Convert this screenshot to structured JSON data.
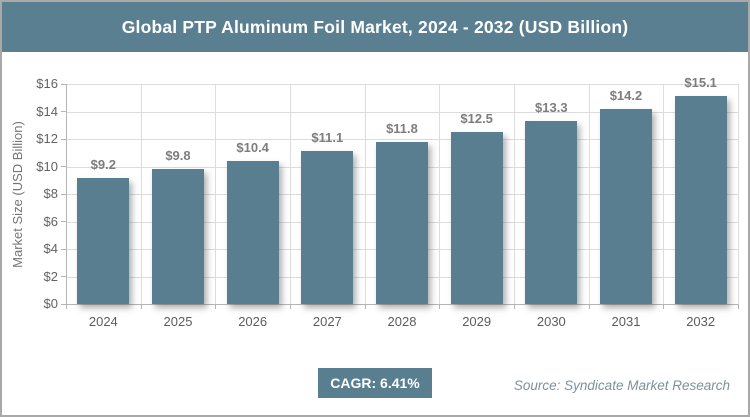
{
  "header": {
    "title": "Global PTP Aluminum Foil Market, 2024 - 2032 (USD Billion)"
  },
  "chart_data": {
    "type": "bar",
    "title": "Global PTP Aluminum Foil Market, 2024 - 2032 (USD Billion)",
    "categories": [
      "2024",
      "2025",
      "2026",
      "2027",
      "2028",
      "2029",
      "2030",
      "2031",
      "2032"
    ],
    "values": [
      9.2,
      9.8,
      10.4,
      11.1,
      11.8,
      12.5,
      13.3,
      14.2,
      15.1
    ],
    "value_prefix": "$",
    "xlabel": "",
    "ylabel": "Market Size (USD Billion)",
    "ylim": [
      0,
      16
    ],
    "ytick_step": 2,
    "ytick_prefix": "$",
    "grid": true,
    "legend_position": "none",
    "bar_color": "#587e90"
  },
  "footer": {
    "cagr_label": "CAGR: 6.41%",
    "source": "Source: Syndicate Market Research"
  },
  "colors": {
    "accent_teal": "#587e90",
    "header_bg": "#5a7f91",
    "gridline": "#dcdcdc",
    "axis": "#b5b5b5",
    "tick_label": "#5c5c5c",
    "data_label": "#7d7d7d",
    "source_text": "#7b929c",
    "border": "#a9a9a9"
  }
}
